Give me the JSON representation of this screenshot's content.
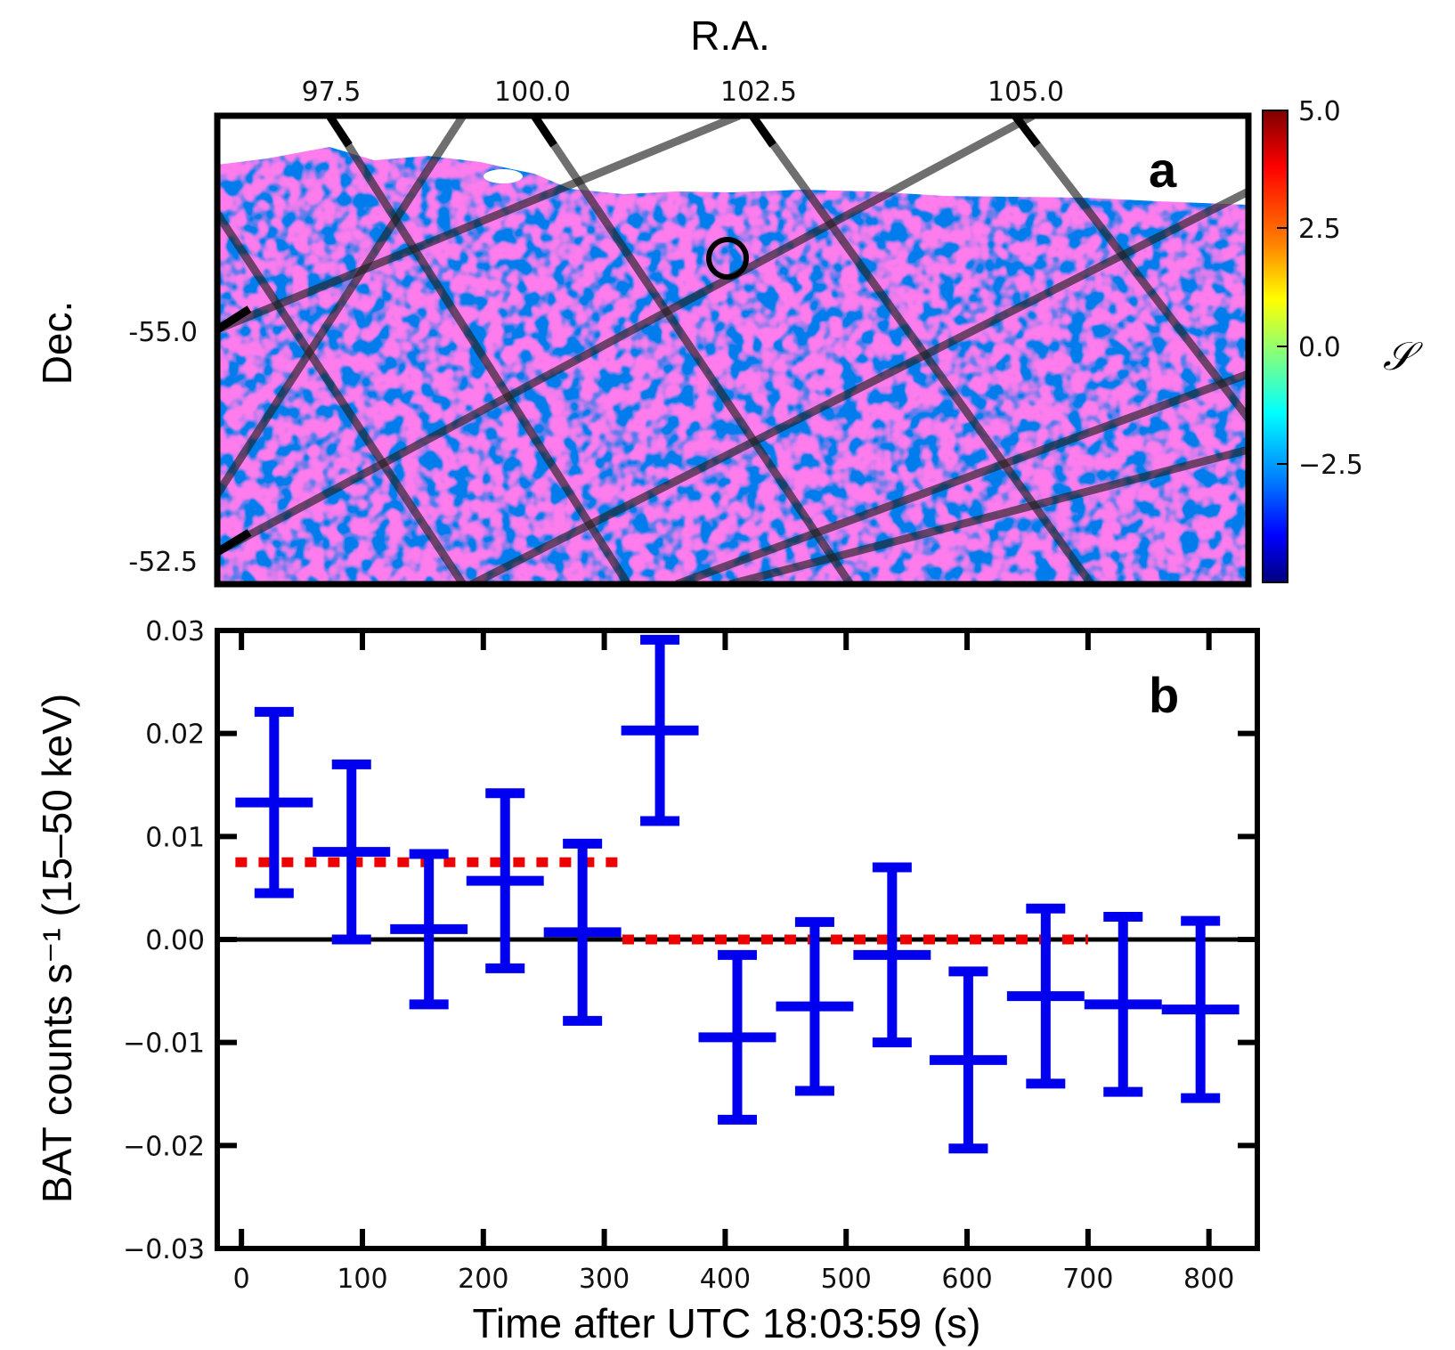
{
  "chart_data": [
    {
      "type": "heatmap",
      "panel_label": "a",
      "xlabel": "R.A.",
      "ylabel": "Dec.",
      "x_ticks": [
        "97.5",
        "100.0",
        "102.5",
        "105.0"
      ],
      "x_tick_values": [
        97.5,
        100.0,
        102.5,
        105.0
      ],
      "y_ticks": [
        "-55.0",
        "-52.5"
      ],
      "y_tick_values": [
        -55.0,
        -52.5
      ],
      "colorbar": {
        "label": "𝒮",
        "ticks": [
          "5.0",
          "2.5",
          "0.0",
          "−2.5"
        ],
        "tick_values": [
          5.0,
          2.5,
          0.0,
          -2.5
        ],
        "range": [
          -5.0,
          5.0
        ]
      },
      "marker": {
        "shape": "circle",
        "ra": 101.8,
        "dec": -54.6
      },
      "grid_overlay": true
    },
    {
      "type": "scatter",
      "panel_label": "b",
      "xlabel": "Time after UTC 18:03:59 (s)",
      "ylabel": "BAT counts s⁻¹ (15–50 keV)",
      "xlim": [
        -20,
        840
      ],
      "ylim": [
        -0.03,
        0.03
      ],
      "x_ticks": [
        "0",
        "100",
        "200",
        "300",
        "400",
        "500",
        "600",
        "700",
        "800"
      ],
      "x_tick_values": [
        0,
        100,
        200,
        300,
        400,
        500,
        600,
        700,
        800
      ],
      "y_ticks": [
        "0.03",
        "0.02",
        "0.01",
        "0.00",
        "−0.01",
        "−0.02",
        "−0.03"
      ],
      "y_tick_values": [
        0.03,
        0.02,
        0.01,
        0.0,
        -0.01,
        -0.02,
        -0.03
      ],
      "points": [
        {
          "x": 27,
          "xerr": 32,
          "y": 0.0133,
          "yerr": 0.0088
        },
        {
          "x": 91,
          "xerr": 32,
          "y": 0.0085,
          "yerr": 0.0085
        },
        {
          "x": 155,
          "xerr": 32,
          "y": 0.001,
          "yerr": 0.0073
        },
        {
          "x": 218,
          "xerr": 32,
          "y": 0.0057,
          "yerr": 0.0085
        },
        {
          "x": 282,
          "xerr": 32,
          "y": 0.0007,
          "yerr": 0.0086
        },
        {
          "x": 346,
          "xerr": 32,
          "y": 0.0203,
          "yerr": 0.0088
        },
        {
          "x": 410,
          "xerr": 32,
          "y": -0.0095,
          "yerr": 0.008
        },
        {
          "x": 474,
          "xerr": 32,
          "y": -0.0065,
          "yerr": 0.0082
        },
        {
          "x": 538,
          "xerr": 32,
          "y": -0.0015,
          "yerr": 0.0085
        },
        {
          "x": 601,
          "xerr": 32,
          "y": -0.0117,
          "yerr": 0.0086
        },
        {
          "x": 665,
          "xerr": 32,
          "y": -0.0055,
          "yerr": 0.0085
        },
        {
          "x": 729,
          "xerr": 32,
          "y": -0.0063,
          "yerr": 0.0085
        },
        {
          "x": 793,
          "xerr": 32,
          "y": -0.0068,
          "yerr": 0.0086
        }
      ],
      "fit_segments": [
        {
          "x": [
            -5,
            315
          ],
          "y": 0.0075
        },
        {
          "x": [
            315,
            700
          ],
          "y": 0.0
        }
      ],
      "colors": {
        "points": "#0000ee",
        "fit": "#ee0000",
        "zero_line": "#000000"
      }
    }
  ]
}
